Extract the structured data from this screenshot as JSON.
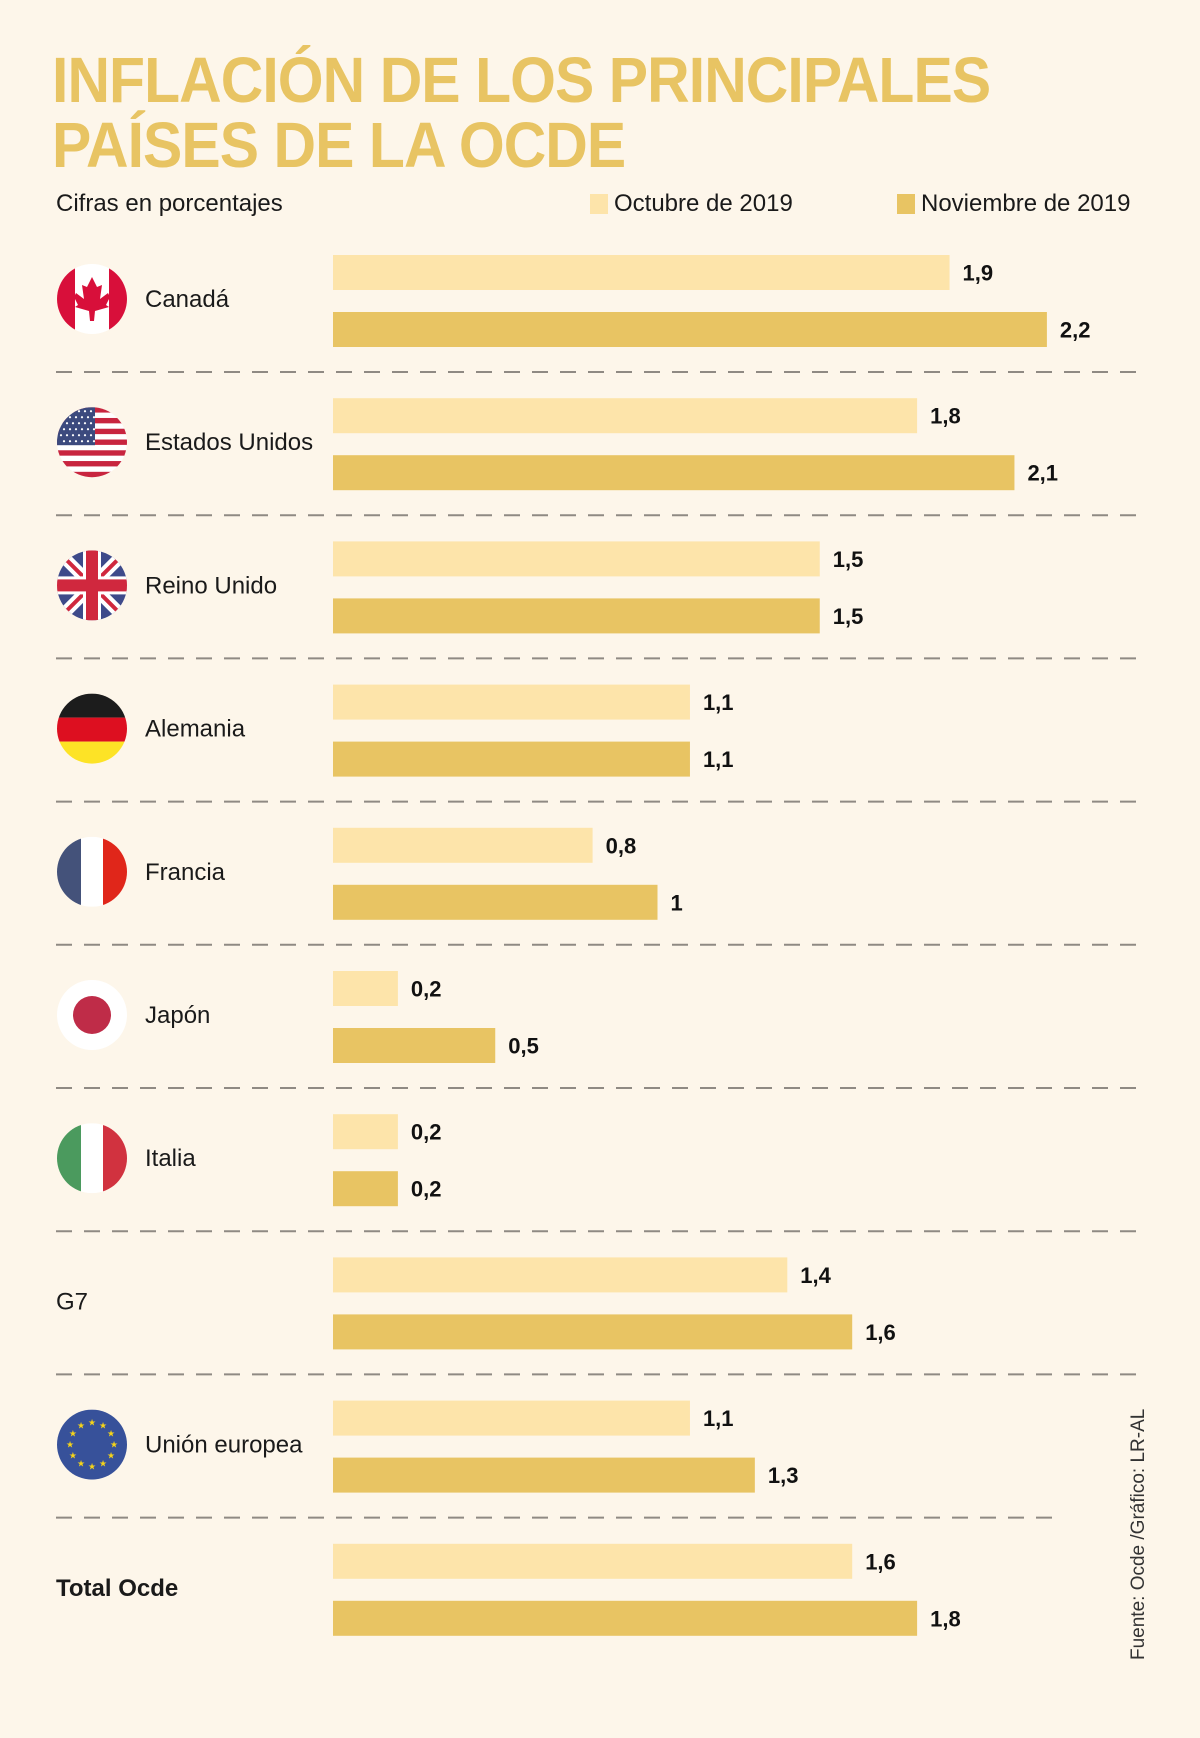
{
  "header": {
    "title_line1": "INFLACIÓN DE LOS PRINCIPALES",
    "title_line2": "PAÍSES DE LA OCDE",
    "subtitle": "Cifras en porcentajes"
  },
  "colors": {
    "title": "#e8c463",
    "october": "#fde4aa",
    "november": "#e8c463",
    "background": "#fdf6ea"
  },
  "source": "Fuente: Ocde /Gráfico: LR-AL",
  "chart_data": {
    "type": "bar",
    "orientation": "horizontal",
    "title": "INFLACIÓN DE LOS PRINCIPALES PAÍSES DE LA OCDE",
    "subtitle": "Cifras en porcentajes",
    "xlabel": "",
    "ylabel": "",
    "xlim": [
      0,
      2.2
    ],
    "grid": false,
    "legend_position": "top-right",
    "categories": [
      "Canadá",
      "Estados Unidos",
      "Reino Unido",
      "Alemania",
      "Francia",
      "Japón",
      "Italia",
      "G7",
      "Unión europea",
      "Total Ocde"
    ],
    "category_icons": [
      "canada-flag-icon",
      "usa-flag-icon",
      "uk-flag-icon",
      "germany-flag-icon",
      "france-flag-icon",
      "japan-flag-icon",
      "italy-flag-icon",
      null,
      "eu-flag-icon",
      null
    ],
    "bold_categories": [
      "Total Ocde"
    ],
    "series": [
      {
        "name": "Octubre de 2019",
        "color": "#fde4aa",
        "values": [
          1.9,
          1.8,
          1.5,
          1.1,
          0.8,
          0.2,
          0.2,
          1.4,
          1.1,
          1.6
        ],
        "labels": [
          "1,9",
          "1,8",
          "1,5",
          "1,1",
          "0,8",
          "0,2",
          "0,2",
          "1,4",
          "1,1",
          "1,6"
        ]
      },
      {
        "name": "Noviembre de 2019",
        "color": "#e8c463",
        "values": [
          2.2,
          2.1,
          1.5,
          1.1,
          1.0,
          0.5,
          0.2,
          1.6,
          1.3,
          1.8
        ],
        "labels": [
          "2,2",
          "2,1",
          "1,5",
          "1,1",
          "1",
          "0,5",
          "0,2",
          "1,6",
          "1,3",
          "1,8"
        ]
      }
    ]
  }
}
